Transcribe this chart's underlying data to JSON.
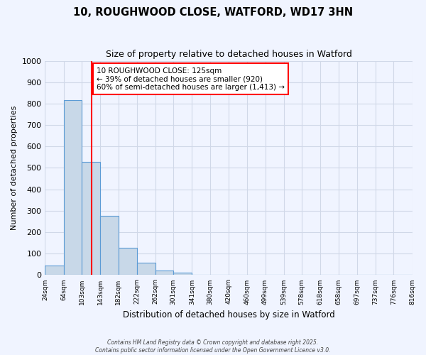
{
  "title": "10, ROUGHWOOD CLOSE, WATFORD, WD17 3HN",
  "subtitle": "Size of property relative to detached houses in Watford",
  "xlabel": "Distribution of detached houses by size in Watford",
  "ylabel": "Number of detached properties",
  "bar_values": [
    46,
    815,
    527,
    277,
    127,
    57,
    22,
    11,
    2,
    0,
    0,
    0,
    0,
    0,
    0,
    0,
    0,
    0,
    0,
    0
  ],
  "bin_edges": [
    24,
    64,
    103,
    143,
    182,
    222,
    262,
    301,
    341,
    380,
    420,
    460,
    499,
    539,
    578,
    618,
    658,
    697,
    737,
    776,
    816
  ],
  "tick_labels": [
    "24sqm",
    "64sqm",
    "103sqm",
    "143sqm",
    "182sqm",
    "222sqm",
    "262sqm",
    "301sqm",
    "341sqm",
    "380sqm",
    "420sqm",
    "460sqm",
    "499sqm",
    "539sqm",
    "578sqm",
    "618sqm",
    "658sqm",
    "697sqm",
    "737sqm",
    "776sqm",
    "816sqm"
  ],
  "bar_color": "#c8d8e8",
  "bar_edge_color": "#5b9bd5",
  "vline_x": 125,
  "vline_color": "red",
  "annotation_box_text": "10 ROUGHWOOD CLOSE: 125sqm\n← 39% of detached houses are smaller (920)\n60% of semi-detached houses are larger (1,413) →",
  "annotation_box_color": "white",
  "annotation_box_edge_color": "red",
  "ylim": [
    0,
    1000
  ],
  "yticks": [
    0,
    100,
    200,
    300,
    400,
    500,
    600,
    700,
    800,
    900,
    1000
  ],
  "grid_color": "#d0d8e8",
  "background_color": "#f0f4ff",
  "footer_line1": "Contains HM Land Registry data © Crown copyright and database right 2025.",
  "footer_line2": "Contains public sector information licensed under the Open Government Licence v3.0."
}
